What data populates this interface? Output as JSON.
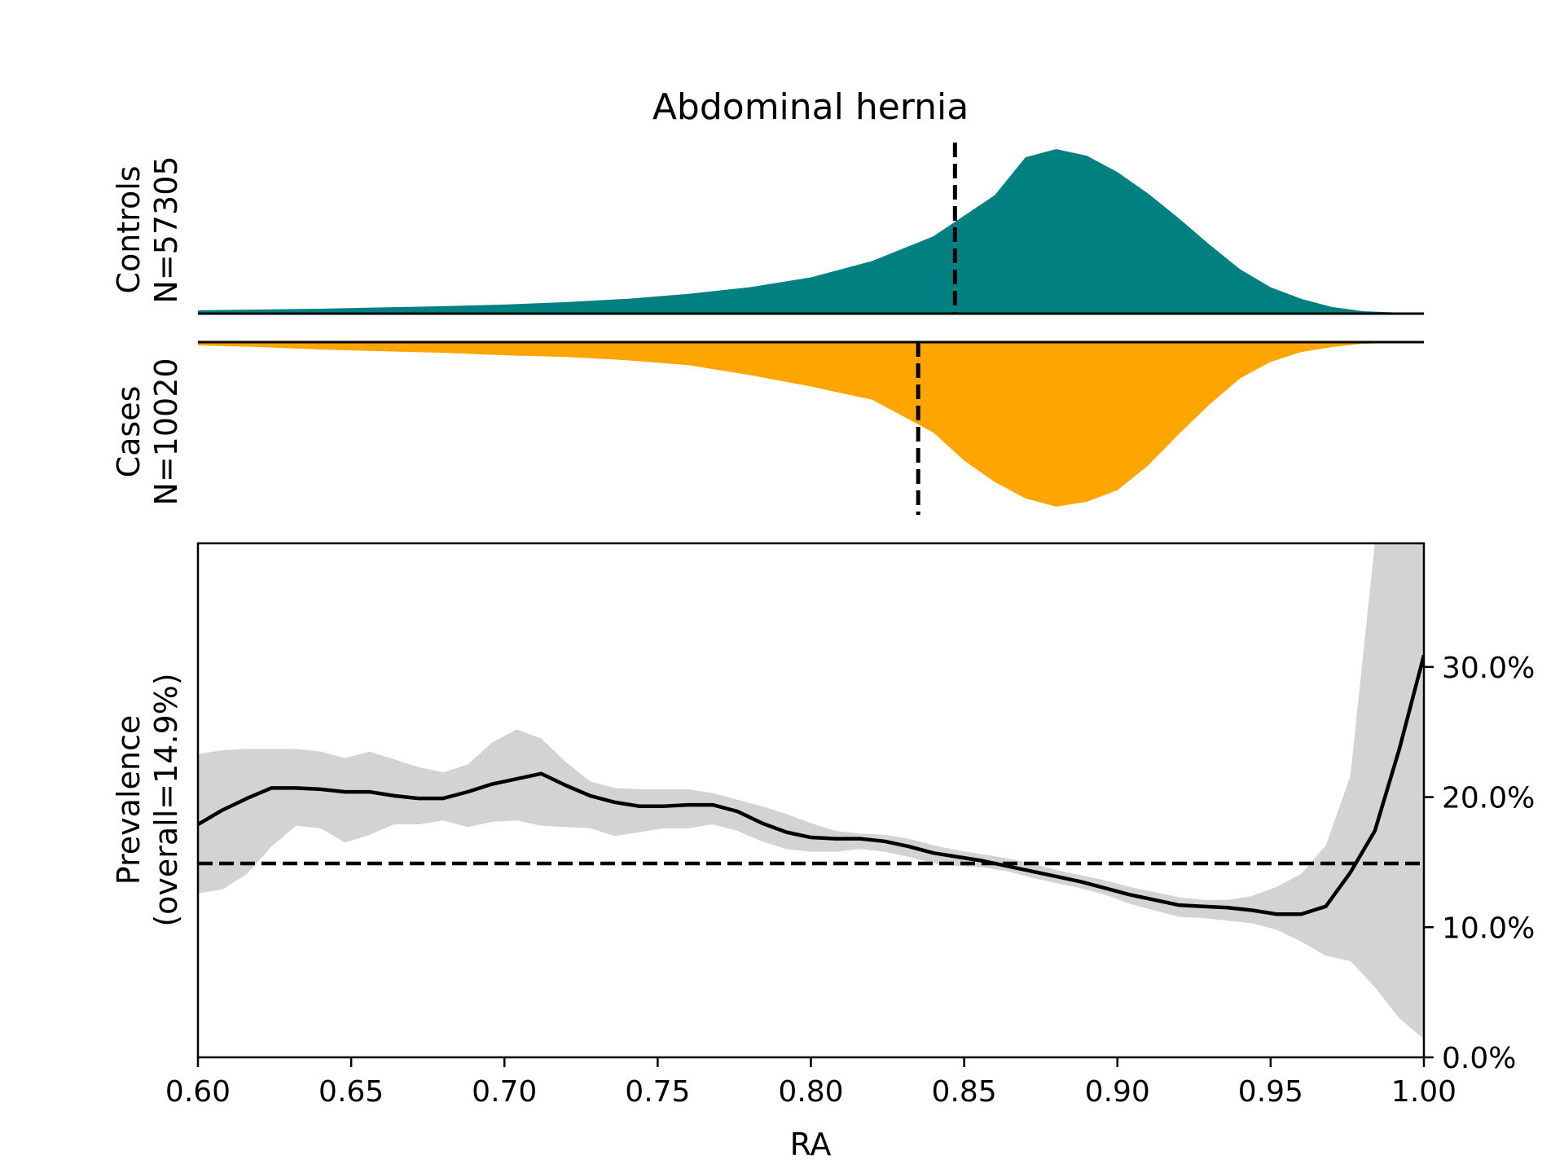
{
  "title": "Abdominal hernia",
  "colors": {
    "controls": "#008080",
    "cases": "#FFA500",
    "ci_band": "#D3D3D3",
    "line": "#000000"
  },
  "chart_data": [
    {
      "type": "area",
      "panel": "controls",
      "ylabel_line1": "Controls",
      "ylabel_line2": "N=57305",
      "xlim": [
        0.6,
        1.0
      ],
      "density_max": 1.0,
      "median_marker": 0.847,
      "x": [
        0.6,
        0.62,
        0.64,
        0.66,
        0.68,
        0.7,
        0.72,
        0.74,
        0.76,
        0.78,
        0.8,
        0.82,
        0.84,
        0.86,
        0.87,
        0.88,
        0.89,
        0.9,
        0.91,
        0.92,
        0.93,
        0.94,
        0.95,
        0.96,
        0.97,
        0.98,
        1.0
      ],
      "y": [
        0.02,
        0.025,
        0.03,
        0.038,
        0.045,
        0.055,
        0.07,
        0.09,
        0.12,
        0.16,
        0.22,
        0.32,
        0.47,
        0.72,
        0.95,
        1.0,
        0.96,
        0.86,
        0.73,
        0.58,
        0.42,
        0.27,
        0.16,
        0.09,
        0.04,
        0.015,
        0.0
      ]
    },
    {
      "type": "area",
      "panel": "cases",
      "ylabel_line1": "Cases",
      "ylabel_line2": "N=10020",
      "xlim": [
        0.6,
        1.0
      ],
      "density_max": 1.0,
      "median_marker": 0.835,
      "x": [
        0.6,
        0.62,
        0.64,
        0.66,
        0.68,
        0.7,
        0.72,
        0.74,
        0.76,
        0.78,
        0.8,
        0.82,
        0.84,
        0.85,
        0.86,
        0.87,
        0.88,
        0.89,
        0.9,
        0.91,
        0.92,
        0.93,
        0.94,
        0.95,
        0.96,
        0.97,
        0.98,
        1.0
      ],
      "y": [
        0.02,
        0.03,
        0.045,
        0.055,
        0.065,
        0.08,
        0.09,
        0.11,
        0.14,
        0.2,
        0.27,
        0.35,
        0.55,
        0.72,
        0.85,
        0.95,
        1.0,
        0.97,
        0.9,
        0.75,
        0.56,
        0.38,
        0.22,
        0.12,
        0.06,
        0.03,
        0.01,
        0.0
      ]
    },
    {
      "type": "line",
      "panel": "prevalence",
      "ylabel_line1": "Prevalence",
      "ylabel_line2": "(overall=14.9%)",
      "xlabel": "RA",
      "xlim": [
        0.6,
        1.0
      ],
      "ylim": [
        0,
        39.5
      ],
      "yticks": [
        0,
        10,
        20,
        30
      ],
      "ytick_labels": [
        "0.0%",
        "10.0%",
        "20.0%",
        "30.0%"
      ],
      "xticks": [
        0.6,
        0.65,
        0.7,
        0.75,
        0.8,
        0.85,
        0.9,
        0.95,
        1.0
      ],
      "xtick_labels": [
        "0.60",
        "0.65",
        "0.70",
        "0.75",
        "0.80",
        "0.85",
        "0.90",
        "0.95",
        "1.00"
      ],
      "y_axis_side": "right",
      "overall_prevalence": 14.9,
      "x": [
        0.6,
        0.608,
        0.616,
        0.624,
        0.632,
        0.64,
        0.648,
        0.656,
        0.664,
        0.672,
        0.68,
        0.688,
        0.696,
        0.704,
        0.712,
        0.72,
        0.728,
        0.736,
        0.744,
        0.752,
        0.76,
        0.768,
        0.776,
        0.784,
        0.792,
        0.8,
        0.808,
        0.816,
        0.824,
        0.832,
        0.84,
        0.848,
        0.856,
        0.864,
        0.872,
        0.88,
        0.888,
        0.896,
        0.904,
        0.912,
        0.92,
        0.928,
        0.936,
        0.944,
        0.952,
        0.96,
        0.968,
        0.976,
        0.984,
        0.992,
        1.0
      ],
      "prevalence": [
        17.9,
        19.0,
        19.9,
        20.7,
        20.7,
        20.6,
        20.4,
        20.4,
        20.1,
        19.9,
        19.9,
        20.4,
        21.0,
        21.4,
        21.8,
        20.9,
        20.1,
        19.6,
        19.3,
        19.3,
        19.4,
        19.4,
        18.9,
        18.0,
        17.3,
        16.9,
        16.8,
        16.8,
        16.6,
        16.2,
        15.7,
        15.4,
        15.1,
        14.7,
        14.3,
        13.9,
        13.5,
        13.0,
        12.5,
        12.1,
        11.7,
        11.6,
        11.5,
        11.3,
        11.0,
        11.0,
        11.6,
        14.2,
        17.4,
        23.7,
        30.9
      ],
      "ci_lower": [
        12.6,
        12.9,
        14.1,
        16.2,
        17.8,
        17.6,
        16.5,
        17.1,
        17.9,
        17.9,
        18.2,
        17.7,
        18.1,
        18.2,
        17.8,
        17.7,
        17.6,
        17.0,
        17.3,
        17.6,
        17.6,
        17.9,
        17.4,
        16.6,
        16.0,
        15.8,
        15.8,
        16.0,
        15.8,
        15.4,
        14.9,
        14.7,
        14.6,
        14.3,
        13.8,
        13.4,
        13.0,
        12.5,
        11.8,
        11.3,
        10.8,
        10.7,
        10.5,
        10.3,
        9.8,
        8.9,
        7.8,
        7.4,
        5.4,
        3.0,
        1.4
      ],
      "ci_upper": [
        23.3,
        23.6,
        23.7,
        23.7,
        23.7,
        23.5,
        23.0,
        23.5,
        22.9,
        22.3,
        21.9,
        22.5,
        24.2,
        25.2,
        24.5,
        22.7,
        21.2,
        20.7,
        20.6,
        20.6,
        20.6,
        20.3,
        19.8,
        19.3,
        18.7,
        18.0,
        17.4,
        17.2,
        17.1,
        16.8,
        16.3,
        15.9,
        15.6,
        15.3,
        14.9,
        14.4,
        14.0,
        13.6,
        13.1,
        12.7,
        12.3,
        12.1,
        12.1,
        12.4,
        13.1,
        14.1,
        16.3,
        21.6,
        39.5,
        39.5,
        39.5
      ]
    }
  ]
}
